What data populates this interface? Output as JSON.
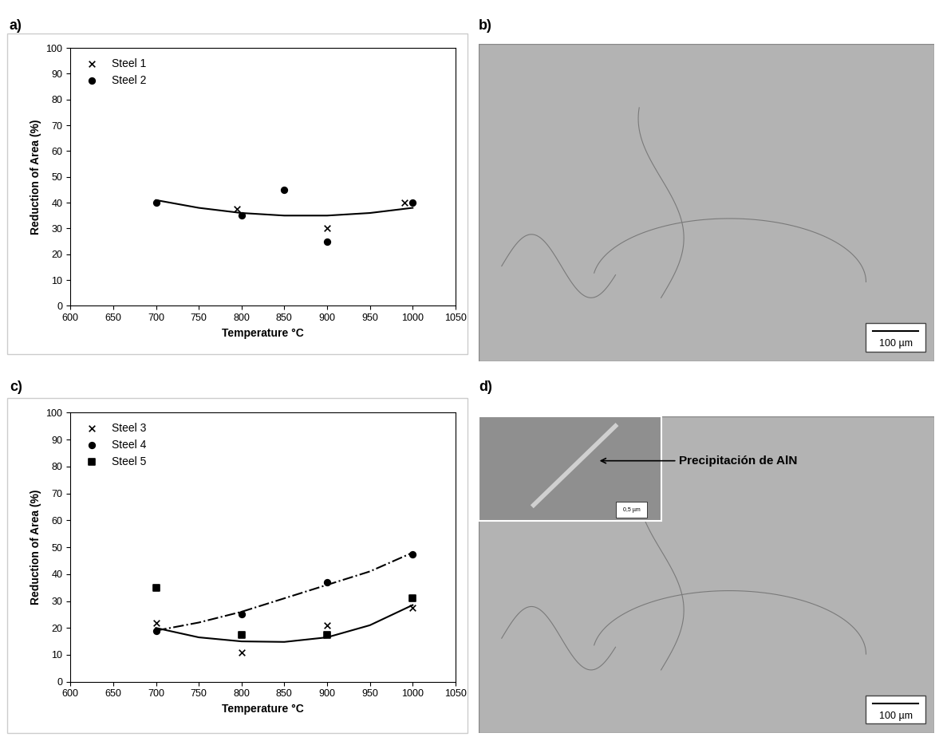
{
  "chart_data": [
    {
      "panel": "a)",
      "type": "scatter",
      "x_label": "Temperature °C",
      "y_label": "Reduction of Area (%)",
      "xlim": [
        600,
        1050
      ],
      "xticks": [
        600,
        650,
        700,
        750,
        800,
        850,
        900,
        950,
        1000,
        1050
      ],
      "ylim": [
        0,
        100
      ],
      "yticks": [
        0,
        10,
        20,
        30,
        40,
        50,
        60,
        70,
        80,
        90,
        100
      ],
      "legend": "upper left",
      "series": [
        {
          "name": "Steel 1",
          "marker": "x",
          "color": "#000000",
          "x": [
            795,
            900,
            990
          ],
          "values": [
            37.5,
            30,
            40
          ]
        },
        {
          "name": "Steel 2",
          "marker": "circle",
          "color": "#000000",
          "x": [
            700,
            800,
            850,
            900,
            1000
          ],
          "values": [
            40,
            35,
            45,
            25,
            40
          ]
        },
        {
          "type": "line",
          "line_style": "solid",
          "color": "#000000",
          "x": [
            700,
            750,
            800,
            850,
            900,
            950,
            1000
          ],
          "values": [
            41,
            38,
            36,
            35,
            35,
            36,
            38
          ]
        }
      ]
    },
    {
      "panel": "c)",
      "type": "scatter",
      "x_label": "Temperature °C",
      "y_label": "Reduction of Area (%)",
      "xlim": [
        600,
        1050
      ],
      "xticks": [
        600,
        650,
        700,
        750,
        800,
        850,
        900,
        950,
        1000,
        1050
      ],
      "ylim": [
        0,
        100
      ],
      "yticks": [
        0,
        10,
        20,
        30,
        40,
        50,
        60,
        70,
        80,
        90,
        100
      ],
      "legend": "upper left",
      "series": [
        {
          "name": "Steel 3",
          "marker": "x",
          "color": "#000000",
          "x": [
            700,
            800,
            900,
            1000
          ],
          "values": [
            22,
            11,
            21,
            27.5
          ]
        },
        {
          "name": "Steel 4",
          "marker": "circle",
          "color": "#000000",
          "x": [
            700,
            800,
            900,
            1000
          ],
          "values": [
            19,
            25,
            37,
            47.5
          ]
        },
        {
          "name": "Steel 5",
          "marker": "square",
          "color": "#000000",
          "x": [
            700,
            800,
            900,
            1000
          ],
          "values": [
            35,
            17.5,
            17.5,
            31
          ]
        },
        {
          "type": "line",
          "line_style": "dashdot",
          "color": "#000000",
          "x": [
            700,
            750,
            800,
            850,
            900,
            950,
            1000
          ],
          "values": [
            19,
            22,
            26,
            31,
            36,
            41,
            48
          ]
        },
        {
          "type": "line",
          "line_style": "solid",
          "color": "#000000",
          "x": [
            700,
            750,
            800,
            850,
            900,
            950,
            1000
          ],
          "values": [
            20,
            16.5,
            15,
            14.8,
            16.5,
            21,
            28.5
          ]
        }
      ]
    }
  ],
  "images": [
    {
      "panel": "b)",
      "scale_bar": "100 µm"
    },
    {
      "panel": "d)",
      "scale_bar": "100 µm",
      "inset_scale_bar": "0,5 µm",
      "annotation": "Precipitación de AlN"
    }
  ]
}
